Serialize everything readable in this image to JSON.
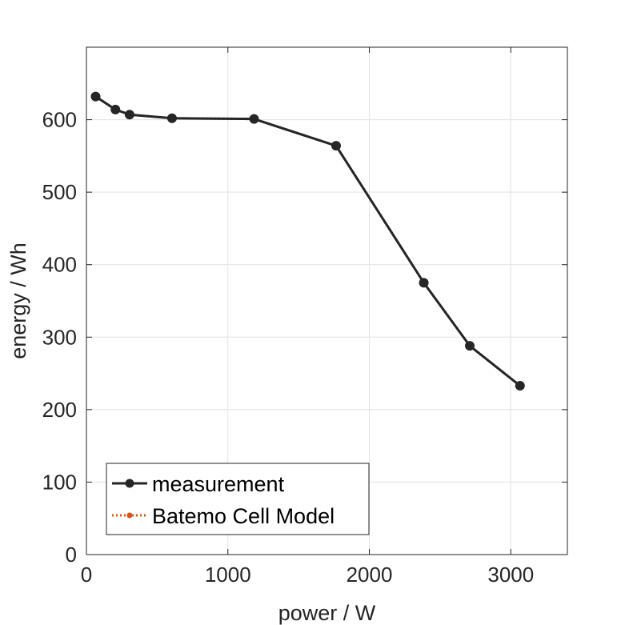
{
  "chart_data": {
    "type": "line",
    "title": "",
    "xlabel": "power / W",
    "ylabel": "energy / Wh",
    "xlim": [
      0,
      3400
    ],
    "ylim": [
      0,
      700
    ],
    "xticks": [
      0,
      1000,
      2000,
      3000
    ],
    "yticks": [
      0,
      100,
      200,
      300,
      400,
      500,
      600
    ],
    "grid": true,
    "legend_position": "bottom-left",
    "series": [
      {
        "name": "measurement",
        "color": "#262626",
        "line_style": "solid",
        "marker": "circle",
        "x": [
          65,
          205,
          305,
          605,
          1185,
          1765,
          2385,
          2710,
          3065
        ],
        "y": [
          632,
          614,
          607,
          602,
          601,
          564,
          375,
          288,
          233
        ]
      },
      {
        "name": "Batemo Cell Model",
        "color": "#D95319",
        "line_style": "dotted",
        "marker": "circle",
        "x": [
          65,
          205,
          305,
          605,
          1185,
          1765,
          2385,
          2710,
          3065
        ],
        "y": [
          632,
          614,
          607,
          602,
          601,
          564,
          375,
          288,
          233
        ]
      }
    ]
  }
}
